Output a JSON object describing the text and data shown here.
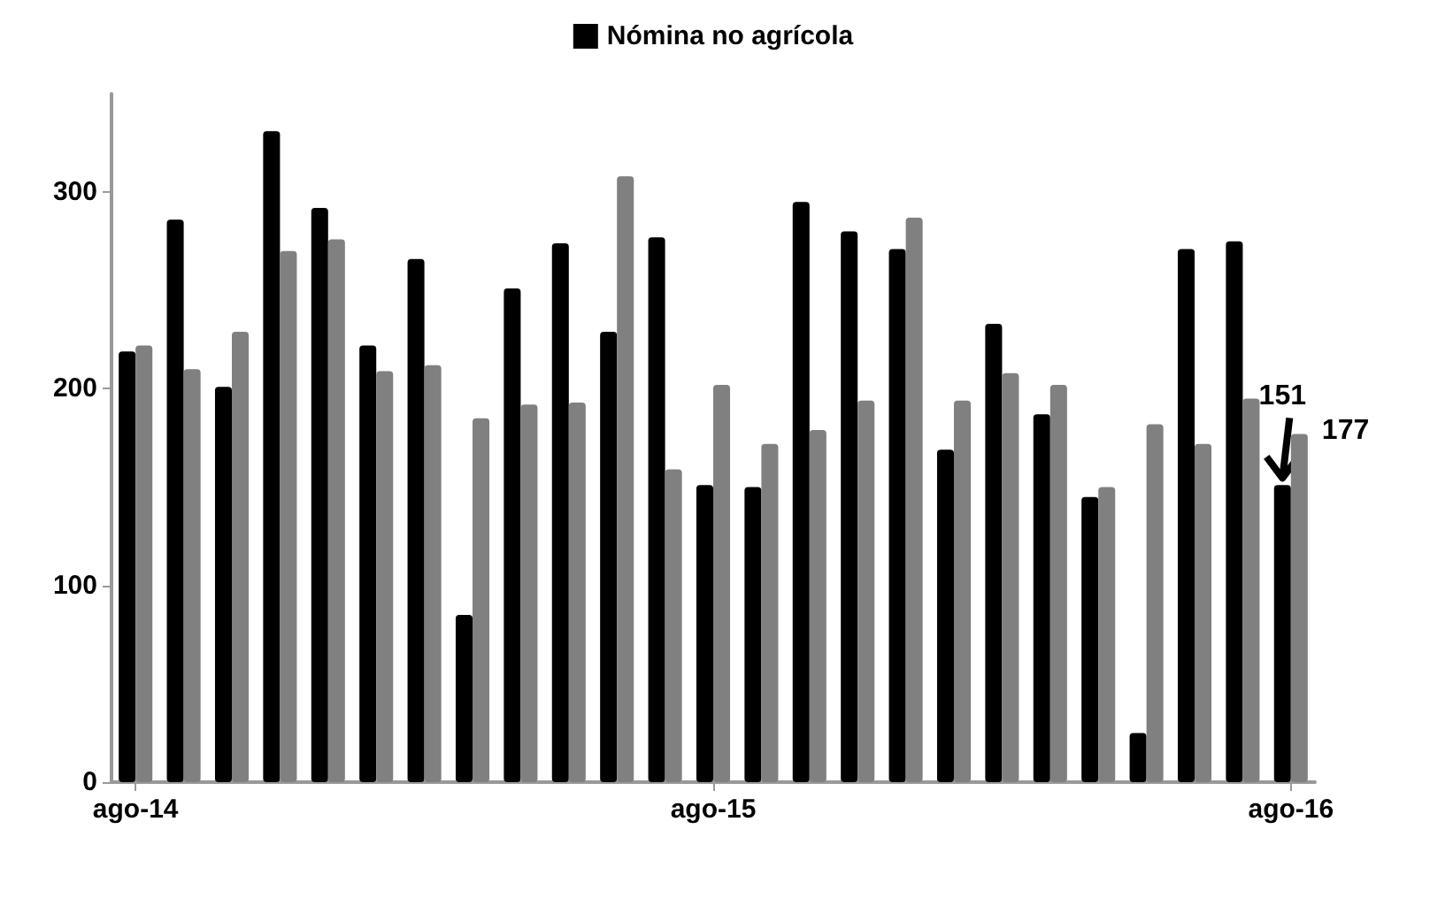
{
  "chart_data": {
    "type": "bar",
    "categories": [
      "ago-14",
      null,
      null,
      null,
      null,
      null,
      null,
      null,
      null,
      null,
      null,
      null,
      "ago-15",
      null,
      null,
      null,
      null,
      null,
      null,
      null,
      null,
      null,
      null,
      null,
      "ago-16"
    ],
    "series": [
      {
        "name": "Nómina no agrícola",
        "color": "#000000",
        "values": [
          219,
          286,
          201,
          331,
          292,
          222,
          266,
          85,
          251,
          274,
          229,
          277,
          151,
          150,
          295,
          280,
          271,
          169,
          233,
          187,
          145,
          25,
          271,
          275,
          151
        ]
      },
      {
        "color": "#808080",
        "values": [
          222,
          210,
          229,
          270,
          276,
          209,
          212,
          185,
          192,
          193,
          308,
          159,
          202,
          172,
          179,
          194,
          287,
          194,
          208,
          202,
          150,
          182,
          172,
          195,
          177
        ]
      }
    ],
    "ylim": [
      0,
      350
    ],
    "yticks": [
      0,
      100,
      200,
      300
    ],
    "grid": false,
    "legend": "top",
    "annotations": [
      {
        "text": "151",
        "x": "ago-16",
        "y": 151
      },
      {
        "text": "177",
        "x": "ago-16",
        "y": 177
      }
    ]
  }
}
